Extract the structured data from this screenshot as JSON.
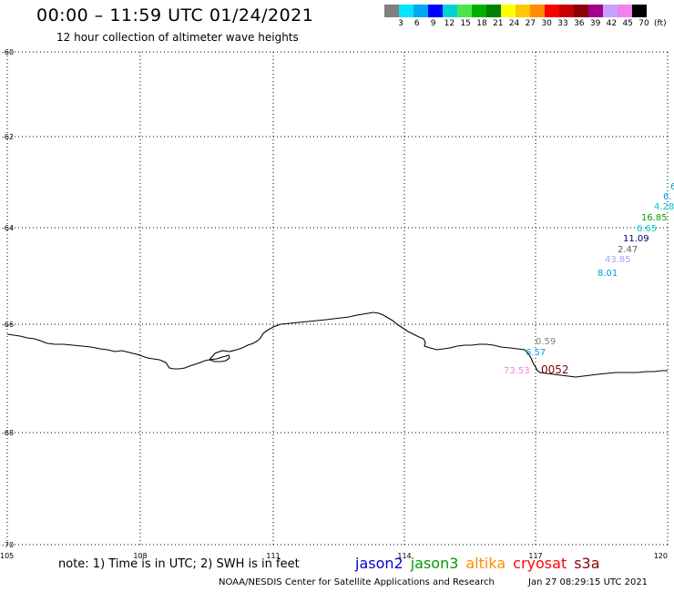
{
  "header": {
    "title": "00:00 – 11:59 UTC 01/24/2021",
    "subtitle": "12 hour collection of altimeter wave heights"
  },
  "legend": {
    "colors": [
      "#808080",
      "#00e5ff",
      "#00a8f0",
      "#0000ff",
      "#00d2d2",
      "#4ce44c",
      "#00b000",
      "#008000",
      "#ffff00",
      "#ffc800",
      "#ff8c00",
      "#ff0000",
      "#c80000",
      "#8b0000",
      "#a0008c",
      "#c8a0ff",
      "#ee82ee",
      "#000000"
    ],
    "ticks": [
      "3",
      "6",
      "9",
      "12",
      "15",
      "18",
      "21",
      "24",
      "27",
      "30",
      "33",
      "36",
      "39",
      "42",
      "45",
      "70",
      "(ft)"
    ]
  },
  "axes": {
    "y_labels": [
      "-60",
      "-62",
      "-64",
      "-66",
      "-68",
      "-70"
    ],
    "x_labels": [
      "105",
      "108",
      "111",
      "114",
      "117",
      "120"
    ]
  },
  "observations": [
    {
      "label": "6",
      "color": "#00a0e0"
    },
    {
      "label": "6.",
      "color": "#00a0e0"
    },
    {
      "label": "4.28",
      "color": "#00c8c8"
    },
    {
      "label": "16.85",
      "color": "#00a000"
    },
    {
      "label": "6.65",
      "color": "#00c8c8"
    },
    {
      "label": "11.09",
      "color": "#000080"
    },
    {
      "label": "2.47",
      "color": "#606060"
    },
    {
      "label": "43.85",
      "color": "#b0a0ff"
    },
    {
      "label": "8.01",
      "color": "#00a0e0"
    },
    {
      "label": "0.59",
      "color": "#808080"
    },
    {
      "label": "6.57",
      "color": "#00a0e0"
    },
    {
      "label": "73.53",
      "color": "#ee82ee"
    },
    {
      "label": "0052",
      "color": "#800000"
    }
  ],
  "footer": {
    "note": "note: 1) Time is in UTC; 2) SWH is in feet",
    "satellites": [
      {
        "name": "jason2",
        "color": "#0000cc"
      },
      {
        "name": "jason3",
        "color": "#009900"
      },
      {
        "name": "altika",
        "color": "#ff8c00"
      },
      {
        "name": "cryosat",
        "color": "#ff0000"
      },
      {
        "name": "s3a",
        "color": "#8b0000"
      }
    ],
    "credit": "NOAA/NESDIS Center for Satellite Applications and Research",
    "timestamp": "Jan 27 08:29:15 UTC 2021"
  }
}
